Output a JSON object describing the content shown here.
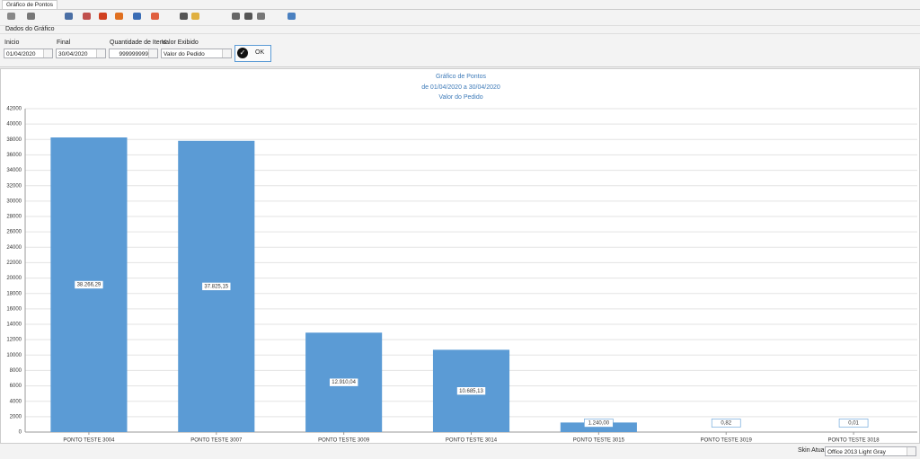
{
  "tab": {
    "title": "Gráfico de Pontos"
  },
  "form": {
    "group_title": "Dados do Gráfico",
    "inicio_label": "Inicio",
    "inicio_value": "01/04/2020",
    "final_label": "Final",
    "final_value": "30/04/2020",
    "quantidade_label": "Quantidade de Itens",
    "quantidade_value": "999999999",
    "valor_label": "Valor Exibido",
    "valor_value": "Valor do Pedido",
    "ok_button": "OK"
  },
  "chart_data": {
    "type": "bar",
    "title": "Gráfico de Pontos",
    "subtitle": "de 01/04/2020 a 30/04/2020",
    "subtitle2": "Valor do Pedido",
    "categories": [
      "PONTO TESTE 3004",
      "PONTO TESTE 3007",
      "PONTO TESTE 3009",
      "PONTO TESTE 3014",
      "PONTO TESTE 3015",
      "PONTO TESTE 3019",
      "PONTO TESTE 3018"
    ],
    "values": [
      38266.29,
      37825.15,
      12910.04,
      10685.13,
      1240.0,
      0.82,
      0.01
    ],
    "value_labels": [
      "38.266,29",
      "37.825,15",
      "12.910,04",
      "10.685,13",
      "1.240,00",
      "0,82",
      "0,01"
    ],
    "color": "#5b9bd5",
    "ylim": [
      0,
      42000
    ],
    "yticks": [
      0,
      2000,
      4000,
      6000,
      8000,
      10000,
      12000,
      14000,
      16000,
      18000,
      20000,
      22000,
      24000,
      26000,
      28000,
      30000,
      32000,
      34000,
      36000,
      38000,
      40000,
      42000
    ],
    "grid": true
  },
  "status": {
    "skin_label": "Skin Atual:",
    "skin_value": "Office 2013 Light Gray"
  }
}
